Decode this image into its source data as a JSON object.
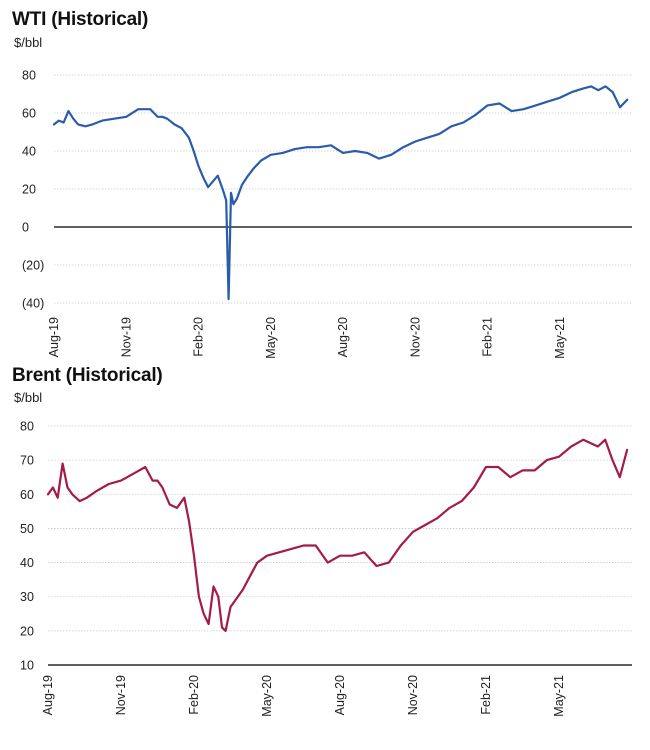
{
  "chart_data": [
    {
      "type": "line",
      "title": "WTI (Historical)",
      "ylabel": "$/bbl",
      "xlabel": "",
      "ylim": [
        -40,
        80
      ],
      "y_ticks": [
        80,
        60,
        40,
        20,
        0,
        -20,
        -40
      ],
      "y_tick_labels": [
        "80",
        "60",
        "40",
        "20",
        "0",
        "(20)",
        "(40)"
      ],
      "x_tick_labels": [
        "Aug-19",
        "Nov-19",
        "Feb-20",
        "May-20",
        "Aug-20",
        "Nov-20",
        "Feb-21",
        "May-21"
      ],
      "x_range_months": [
        0,
        24
      ],
      "grid": true,
      "color": "#2a5caa",
      "series": [
        {
          "name": "WTI",
          "x": [
            0,
            0.2,
            0.4,
            0.6,
            0.8,
            1.0,
            1.3,
            1.6,
            2.0,
            2.5,
            3.0,
            3.5,
            4.0,
            4.3,
            4.5,
            4.7,
            5.0,
            5.3,
            5.6,
            5.8,
            6.0,
            6.2,
            6.4,
            6.6,
            6.8,
            7.0,
            7.15,
            7.25,
            7.35,
            7.45,
            7.6,
            7.8,
            8.0,
            8.3,
            8.6,
            9.0,
            9.5,
            10.0,
            10.5,
            11.0,
            11.5,
            12.0,
            12.5,
            13.0,
            13.5,
            14.0,
            14.5,
            15.0,
            15.5,
            16.0,
            16.5,
            17.0,
            17.5,
            18.0,
            18.5,
            19.0,
            19.5,
            20.0,
            20.5,
            21.0,
            21.5,
            22.0,
            22.3,
            22.6,
            22.9,
            23.2,
            23.5,
            23.8
          ],
          "values": [
            54,
            56,
            55,
            61,
            57,
            54,
            53,
            54,
            56,
            57,
            58,
            62,
            62,
            58,
            58,
            57,
            54,
            52,
            47,
            40,
            32,
            26,
            21,
            24,
            27,
            20,
            14,
            -38,
            18,
            12,
            15,
            22,
            26,
            31,
            35,
            38,
            39,
            41,
            42,
            42,
            43,
            39,
            40,
            39,
            36,
            38,
            42,
            45,
            47,
            49,
            53,
            55,
            59,
            64,
            65,
            61,
            62,
            64,
            66,
            68,
            71,
            73,
            74,
            72,
            74,
            71,
            63,
            67
          ]
        }
      ]
    },
    {
      "type": "line",
      "title": "Brent (Historical)",
      "ylabel": "$/bbl",
      "xlabel": "",
      "ylim": [
        10,
        80
      ],
      "y_ticks": [
        80,
        70,
        60,
        50,
        40,
        30,
        20,
        10
      ],
      "y_tick_labels": [
        "80",
        "70",
        "60",
        "50",
        "40",
        "30",
        "20",
        "10"
      ],
      "x_tick_labels": [
        "Aug-19",
        "Nov-19",
        "Feb-20",
        "May-20",
        "Aug-20",
        "Nov-20",
        "Feb-21",
        "May-21"
      ],
      "x_range_months": [
        0,
        24
      ],
      "grid": true,
      "color": "#a31b47",
      "series": [
        {
          "name": "Brent",
          "x": [
            0,
            0.2,
            0.4,
            0.6,
            0.8,
            1.0,
            1.3,
            1.6,
            2.0,
            2.5,
            3.0,
            3.5,
            4.0,
            4.3,
            4.5,
            4.7,
            5.0,
            5.3,
            5.6,
            5.8,
            6.0,
            6.2,
            6.4,
            6.6,
            6.8,
            7.0,
            7.15,
            7.3,
            7.5,
            7.7,
            8.0,
            8.3,
            8.6,
            9.0,
            9.5,
            10.0,
            10.5,
            11.0,
            11.5,
            12.0,
            12.5,
            13.0,
            13.5,
            14.0,
            14.5,
            15.0,
            15.5,
            16.0,
            16.5,
            17.0,
            17.5,
            18.0,
            18.5,
            19.0,
            19.5,
            20.0,
            20.5,
            21.0,
            21.5,
            22.0,
            22.3,
            22.6,
            22.9,
            23.2,
            23.5,
            23.8
          ],
          "values": [
            60,
            62,
            59,
            69,
            62,
            60,
            58,
            59,
            61,
            63,
            64,
            66,
            68,
            64,
            64,
            62,
            57,
            56,
            59,
            52,
            42,
            30,
            25,
            22,
            33,
            30,
            21,
            20,
            27,
            29,
            32,
            36,
            40,
            42,
            43,
            44,
            45,
            45,
            40,
            42,
            42,
            43,
            39,
            40,
            45,
            49,
            51,
            53,
            56,
            58,
            62,
            68,
            68,
            65,
            67,
            67,
            70,
            71,
            74,
            76,
            75,
            74,
            76,
            70,
            65,
            73
          ]
        }
      ]
    }
  ]
}
